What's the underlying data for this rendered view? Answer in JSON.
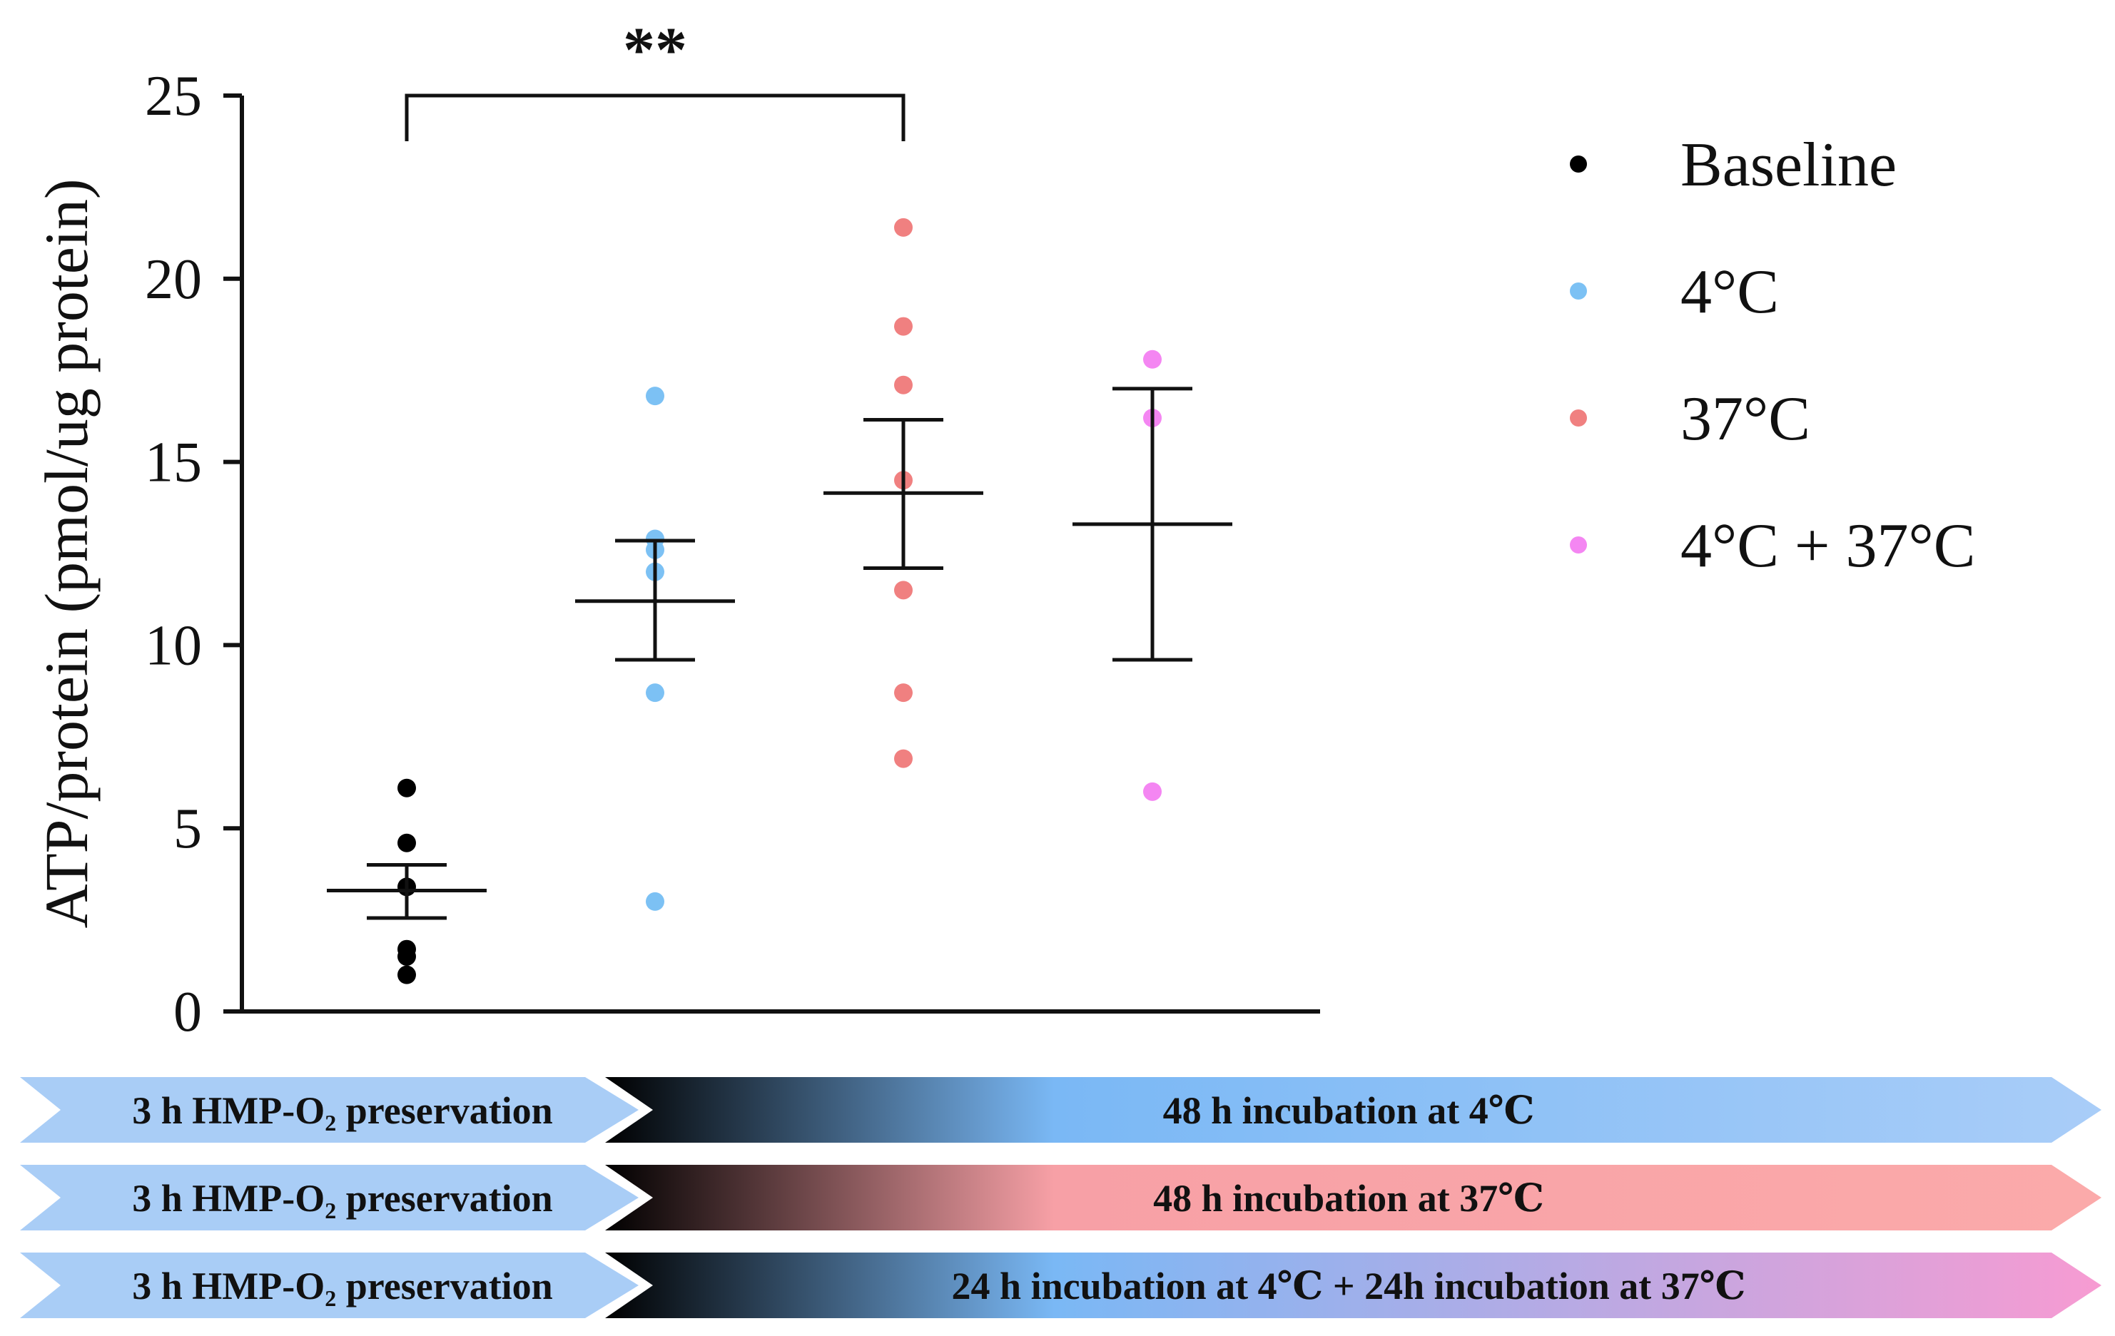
{
  "chart_data": {
    "type": "scatter",
    "ylabel": "ATP/protein (pmol/ug protein)",
    "xlabel": "",
    "ylim": [
      0,
      25
    ],
    "yticks": [
      0,
      5,
      10,
      15,
      20,
      25
    ],
    "groups": [
      {
        "name": "Baseline",
        "color": "#000000",
        "points": [
          6.1,
          4.6,
          3.4,
          1.7,
          1.5,
          1.0
        ],
        "mean": 3.3,
        "sem_low": 2.55,
        "sem_high": 4.0
      },
      {
        "name": "4°C",
        "color": "#7cc1f4",
        "points": [
          16.8,
          12.9,
          12.6,
          12.0,
          8.7,
          3.0
        ],
        "mean": 11.2,
        "sem_low": 9.6,
        "sem_high": 12.85
      },
      {
        "name": "37°C",
        "color": "#f08080",
        "points": [
          21.4,
          18.7,
          17.1,
          14.5,
          11.5,
          8.7,
          6.9
        ],
        "mean": 14.15,
        "sem_low": 12.1,
        "sem_high": 16.15
      },
      {
        "name": "4°C + 37°C",
        "color": "#f486f2",
        "points": [
          17.8,
          16.2,
          6.0
        ],
        "mean": 13.3,
        "sem_low": 9.6,
        "sem_high": 17.0
      }
    ],
    "significance": {
      "label": "**",
      "from_group": 0,
      "to_group": 2
    },
    "legend_position": "top-right"
  },
  "banners": [
    {
      "left_text": "3 h HMP-O",
      "left_sub": "2",
      "left_after": " preservation",
      "right_text": "48 h incubation at 4℃",
      "colors": [
        "#000000",
        "#7ab8f5",
        "#a9cdf8"
      ]
    },
    {
      "left_text": "3 h HMP-O",
      "left_sub": "2",
      "left_after": " preservation",
      "right_text": "48 h incubation at 37℃",
      "colors": [
        "#000000",
        "#f7a0a6",
        "#fbaaaa"
      ]
    },
    {
      "left_text": "3 h HMP-O",
      "left_sub": "2",
      "left_after": " preservation",
      "right_text": "24 h incubation at 4℃ + 24h incubation at 37℃",
      "colors": [
        "#000000",
        "#7ab8f5",
        "#f79bd2"
      ]
    }
  ]
}
